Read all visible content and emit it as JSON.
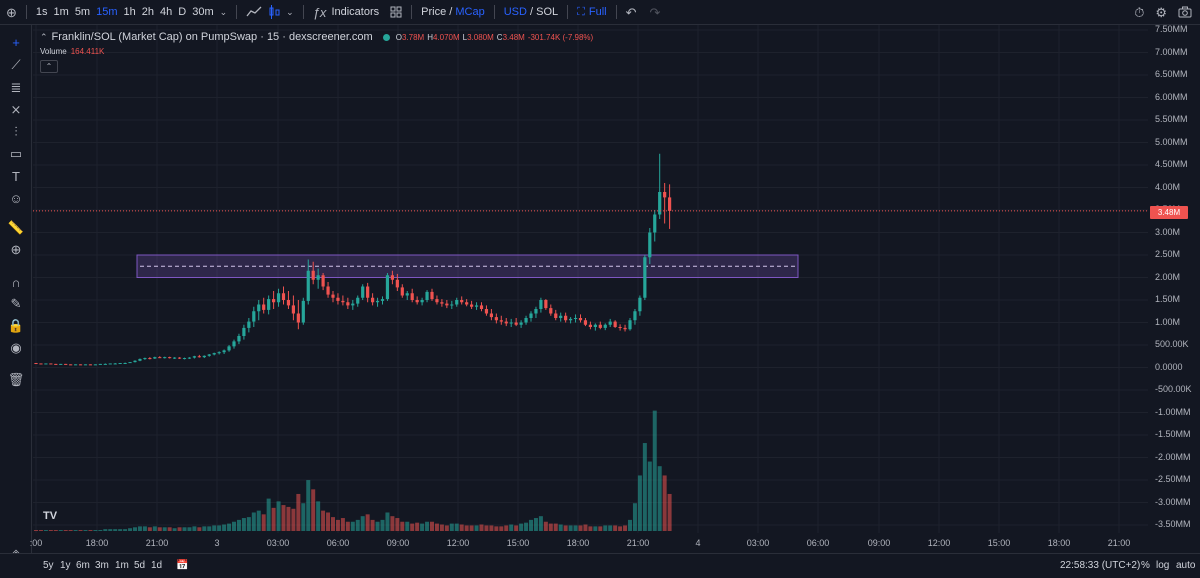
{
  "toolbar": {
    "intervals": [
      "1s",
      "1m",
      "5m",
      "15m",
      "1h",
      "2h",
      "4h",
      "D",
      "30m"
    ],
    "active_interval": "15m",
    "indicators_label": "Indicators",
    "price_label": "Price",
    "mcap_label": "MCap",
    "usd_label": "USD",
    "sol_label": "SOL",
    "full_label": "Full",
    "slash": "/"
  },
  "legend": {
    "title": "Franklin/SOL (Market Cap) on PumpSwap · 15 · dexscreener.com",
    "o_key": "O",
    "o_val": "3.78M",
    "h_key": "H",
    "h_val": "4.070M",
    "l_key": "L",
    "l_val": "3.080M",
    "c_key": "C",
    "c_val": "3.48M",
    "change": "-301.74K (-7.98%)",
    "volume_label": "Volume",
    "volume_value": "164.411K",
    "collapse_glyph": "⌃"
  },
  "price_axis": [
    "7.50MM",
    "7.00MM",
    "6.50MM",
    "6.00MM",
    "5.50MM",
    "5.00MM",
    "4.50MM",
    "4.00M",
    "3.50M",
    "3.00M",
    "2.50M",
    "2.00M",
    "1.50M",
    "1.00M",
    "500.00K",
    "0.0000",
    "-500.00K",
    "-1.00MM",
    "-1.50MM",
    "-2.00MM",
    "-2.50MM",
    "-3.00MM",
    "-3.50MM"
  ],
  "price_ticks": [
    7.5,
    7.0,
    6.5,
    6.0,
    5.5,
    5.0,
    4.5,
    4.0,
    3.5,
    3.0,
    2.5,
    2.0,
    1.5,
    1.0,
    0.5,
    0,
    -0.5,
    -1.0,
    -1.5,
    -2.0,
    -2.5,
    -3.0,
    -3.5
  ],
  "last_price": "3.48M",
  "time_axis": [
    ":00",
    "18:00",
    "21:00",
    "3",
    "03:00",
    "06:00",
    "09:00",
    "12:00",
    "15:00",
    "18:00",
    "21:00",
    "4",
    "03:00",
    "06:00",
    "09:00",
    "12:00",
    "15:00",
    "18:00",
    "21:00"
  ],
  "ranges": [
    "5y",
    "1y",
    "6m",
    "3m",
    "1m",
    "5d",
    "1d"
  ],
  "clock": "22:58:33 (UTC+2)",
  "percent_label": "%",
  "log_label": "log",
  "auto_label": "auto",
  "tv_logo": "TV",
  "colors": {
    "up": "#26a69a",
    "down": "#ef5350",
    "background": "#131722",
    "zone": "#7e57c2"
  },
  "chart_data": {
    "type": "candlestick",
    "y_unit": "market cap (USD)",
    "overlay_zone": {
      "low": 2.0,
      "high": 2.5,
      "mid": 2.25
    },
    "candles_start": 0,
    "candles": [
      [
        0.1,
        0.1,
        0.09,
        0.09
      ],
      [
        0.09,
        0.09,
        0.08,
        0.08
      ],
      [
        0.08,
        0.09,
        0.08,
        0.09
      ],
      [
        0.09,
        0.09,
        0.08,
        0.08
      ],
      [
        0.08,
        0.08,
        0.07,
        0.07
      ],
      [
        0.07,
        0.08,
        0.07,
        0.08
      ],
      [
        0.08,
        0.08,
        0.07,
        0.07
      ],
      [
        0.07,
        0.07,
        0.06,
        0.06
      ],
      [
        0.06,
        0.07,
        0.06,
        0.07
      ],
      [
        0.07,
        0.07,
        0.06,
        0.06
      ],
      [
        0.06,
        0.07,
        0.06,
        0.07
      ],
      [
        0.07,
        0.07,
        0.06,
        0.06
      ],
      [
        0.06,
        0.07,
        0.06,
        0.07
      ],
      [
        0.07,
        0.08,
        0.07,
        0.08
      ],
      [
        0.08,
        0.09,
        0.07,
        0.08
      ],
      [
        0.08,
        0.09,
        0.08,
        0.09
      ],
      [
        0.09,
        0.1,
        0.08,
        0.09
      ],
      [
        0.09,
        0.1,
        0.09,
        0.1
      ],
      [
        0.1,
        0.11,
        0.09,
        0.1
      ],
      [
        0.1,
        0.12,
        0.1,
        0.12
      ],
      [
        0.12,
        0.16,
        0.11,
        0.15
      ],
      [
        0.15,
        0.2,
        0.14,
        0.19
      ],
      [
        0.19,
        0.22,
        0.17,
        0.21
      ],
      [
        0.21,
        0.23,
        0.18,
        0.2
      ],
      [
        0.2,
        0.24,
        0.19,
        0.23
      ],
      [
        0.23,
        0.25,
        0.21,
        0.22
      ],
      [
        0.22,
        0.24,
        0.2,
        0.23
      ],
      [
        0.23,
        0.24,
        0.2,
        0.21
      ],
      [
        0.21,
        0.23,
        0.19,
        0.22
      ],
      [
        0.22,
        0.23,
        0.19,
        0.2
      ],
      [
        0.2,
        0.22,
        0.18,
        0.21
      ],
      [
        0.21,
        0.23,
        0.19,
        0.22
      ],
      [
        0.22,
        0.26,
        0.2,
        0.25
      ],
      [
        0.25,
        0.28,
        0.22,
        0.23
      ],
      [
        0.23,
        0.27,
        0.21,
        0.26
      ],
      [
        0.26,
        0.3,
        0.24,
        0.29
      ],
      [
        0.29,
        0.33,
        0.27,
        0.32
      ],
      [
        0.32,
        0.36,
        0.29,
        0.34
      ],
      [
        0.34,
        0.4,
        0.3,
        0.38
      ],
      [
        0.38,
        0.5,
        0.35,
        0.47
      ],
      [
        0.47,
        0.62,
        0.42,
        0.58
      ],
      [
        0.58,
        0.75,
        0.52,
        0.7
      ],
      [
        0.7,
        0.95,
        0.62,
        0.88
      ],
      [
        0.88,
        1.1,
        0.78,
        1.02
      ],
      [
        1.02,
        1.35,
        0.9,
        1.25
      ],
      [
        1.25,
        1.5,
        1.05,
        1.4
      ],
      [
        1.4,
        1.55,
        1.2,
        1.28
      ],
      [
        1.28,
        1.6,
        1.18,
        1.52
      ],
      [
        1.52,
        1.7,
        1.3,
        1.45
      ],
      [
        1.45,
        1.75,
        1.35,
        1.65
      ],
      [
        1.65,
        1.8,
        1.4,
        1.5
      ],
      [
        1.5,
        1.7,
        1.3,
        1.38
      ],
      [
        1.38,
        1.6,
        1.05,
        1.2
      ],
      [
        1.2,
        1.5,
        0.85,
        1.0
      ],
      [
        1.0,
        1.55,
        0.95,
        1.48
      ],
      [
        1.48,
        2.4,
        1.4,
        2.15
      ],
      [
        2.15,
        2.35,
        1.85,
        1.95
      ],
      [
        1.95,
        2.2,
        1.75,
        2.05
      ],
      [
        2.05,
        2.1,
        1.72,
        1.8
      ],
      [
        1.8,
        1.9,
        1.55,
        1.62
      ],
      [
        1.62,
        1.7,
        1.45,
        1.55
      ],
      [
        1.55,
        1.65,
        1.4,
        1.48
      ],
      [
        1.48,
        1.6,
        1.38,
        1.45
      ],
      [
        1.45,
        1.55,
        1.3,
        1.38
      ],
      [
        1.38,
        1.5,
        1.28,
        1.42
      ],
      [
        1.42,
        1.6,
        1.35,
        1.55
      ],
      [
        1.55,
        1.85,
        1.5,
        1.8
      ],
      [
        1.8,
        1.88,
        1.45,
        1.55
      ],
      [
        1.55,
        1.65,
        1.38,
        1.45
      ],
      [
        1.45,
        1.55,
        1.35,
        1.48
      ],
      [
        1.48,
        1.58,
        1.4,
        1.52
      ],
      [
        1.52,
        2.1,
        1.48,
        2.05
      ],
      [
        2.05,
        2.15,
        1.85,
        1.95
      ],
      [
        1.95,
        2.08,
        1.7,
        1.78
      ],
      [
        1.78,
        1.85,
        1.55,
        1.6
      ],
      [
        1.6,
        1.7,
        1.5,
        1.65
      ],
      [
        1.65,
        1.75,
        1.45,
        1.5
      ],
      [
        1.5,
        1.58,
        1.4,
        1.45
      ],
      [
        1.45,
        1.55,
        1.38,
        1.5
      ],
      [
        1.5,
        1.72,
        1.45,
        1.68
      ],
      [
        1.68,
        1.75,
        1.48,
        1.52
      ],
      [
        1.52,
        1.6,
        1.4,
        1.45
      ],
      [
        1.45,
        1.52,
        1.35,
        1.42
      ],
      [
        1.42,
        1.5,
        1.32,
        1.38
      ],
      [
        1.38,
        1.48,
        1.3,
        1.4
      ],
      [
        1.4,
        1.55,
        1.35,
        1.5
      ],
      [
        1.5,
        1.58,
        1.4,
        1.45
      ],
      [
        1.45,
        1.52,
        1.36,
        1.4
      ],
      [
        1.4,
        1.48,
        1.3,
        1.35
      ],
      [
        1.35,
        1.45,
        1.28,
        1.38
      ],
      [
        1.38,
        1.45,
        1.25,
        1.3
      ],
      [
        1.3,
        1.38,
        1.15,
        1.2
      ],
      [
        1.2,
        1.3,
        1.05,
        1.12
      ],
      [
        1.12,
        1.2,
        0.98,
        1.05
      ],
      [
        1.05,
        1.15,
        0.95,
        1.02
      ],
      [
        1.02,
        1.1,
        0.92,
        0.98
      ],
      [
        0.98,
        1.08,
        0.9,
        1.0
      ],
      [
        1.0,
        1.1,
        0.92,
        0.95
      ],
      [
        0.95,
        1.05,
        0.88,
        1.0
      ],
      [
        1.0,
        1.15,
        0.95,
        1.1
      ],
      [
        1.1,
        1.25,
        1.02,
        1.2
      ],
      [
        1.2,
        1.35,
        1.1,
        1.3
      ],
      [
        1.3,
        1.55,
        1.22,
        1.5
      ],
      [
        1.5,
        1.52,
        1.28,
        1.32
      ],
      [
        1.32,
        1.4,
        1.15,
        1.2
      ],
      [
        1.2,
        1.28,
        1.05,
        1.1
      ],
      [
        1.1,
        1.22,
        1.02,
        1.15
      ],
      [
        1.15,
        1.22,
        1.0,
        1.05
      ],
      [
        1.05,
        1.12,
        0.98,
        1.08
      ],
      [
        1.08,
        1.18,
        1.0,
        1.1
      ],
      [
        1.1,
        1.18,
        1.0,
        1.05
      ],
      [
        1.05,
        1.1,
        0.92,
        0.95
      ],
      [
        0.95,
        1.02,
        0.85,
        0.9
      ],
      [
        0.9,
        0.98,
        0.82,
        0.95
      ],
      [
        0.95,
        1.02,
        0.85,
        0.88
      ],
      [
        0.88,
        0.98,
        0.83,
        0.95
      ],
      [
        0.95,
        1.08,
        0.9,
        1.02
      ],
      [
        1.02,
        1.05,
        0.88,
        0.9
      ],
      [
        0.9,
        0.96,
        0.82,
        0.88
      ],
      [
        0.88,
        0.95,
        0.8,
        0.85
      ],
      [
        0.85,
        1.1,
        0.82,
        1.05
      ],
      [
        1.05,
        1.3,
        0.95,
        1.25
      ],
      [
        1.25,
        1.6,
        1.15,
        1.55
      ],
      [
        1.55,
        2.5,
        1.5,
        2.45
      ],
      [
        2.45,
        3.1,
        2.3,
        3.0
      ],
      [
        3.0,
        3.5,
        2.8,
        3.4
      ],
      [
        3.4,
        4.75,
        3.3,
        3.9
      ],
      [
        3.9,
        4.1,
        3.2,
        3.78
      ],
      [
        3.78,
        4.07,
        3.08,
        3.48
      ]
    ],
    "volumes": [
      0.01,
      0.01,
      0.01,
      0.01,
      0.01,
      0.01,
      0.01,
      0.01,
      0.01,
      0.01,
      0.01,
      0.01,
      0.01,
      0.01,
      0.02,
      0.02,
      0.02,
      0.02,
      0.02,
      0.03,
      0.04,
      0.05,
      0.05,
      0.04,
      0.05,
      0.04,
      0.04,
      0.04,
      0.03,
      0.04,
      0.04,
      0.04,
      0.05,
      0.04,
      0.05,
      0.05,
      0.06,
      0.06,
      0.07,
      0.08,
      0.1,
      0.12,
      0.14,
      0.15,
      0.2,
      0.22,
      0.18,
      0.35,
      0.25,
      0.32,
      0.28,
      0.26,
      0.24,
      0.4,
      0.3,
      0.55,
      0.45,
      0.32,
      0.22,
      0.2,
      0.15,
      0.12,
      0.14,
      0.1,
      0.1,
      0.12,
      0.16,
      0.18,
      0.12,
      0.1,
      0.12,
      0.2,
      0.16,
      0.14,
      0.1,
      0.1,
      0.08,
      0.09,
      0.08,
      0.1,
      0.1,
      0.08,
      0.07,
      0.06,
      0.08,
      0.08,
      0.07,
      0.06,
      0.06,
      0.06,
      0.07,
      0.06,
      0.06,
      0.05,
      0.05,
      0.06,
      0.07,
      0.06,
      0.08,
      0.09,
      0.12,
      0.14,
      0.16,
      0.1,
      0.08,
      0.08,
      0.07,
      0.06,
      0.06,
      0.06,
      0.06,
      0.07,
      0.05,
      0.05,
      0.05,
      0.06,
      0.06,
      0.06,
      0.05,
      0.06,
      0.12,
      0.3,
      0.6,
      0.95,
      0.75,
      1.3,
      0.7,
      0.6,
      0.4
    ]
  }
}
